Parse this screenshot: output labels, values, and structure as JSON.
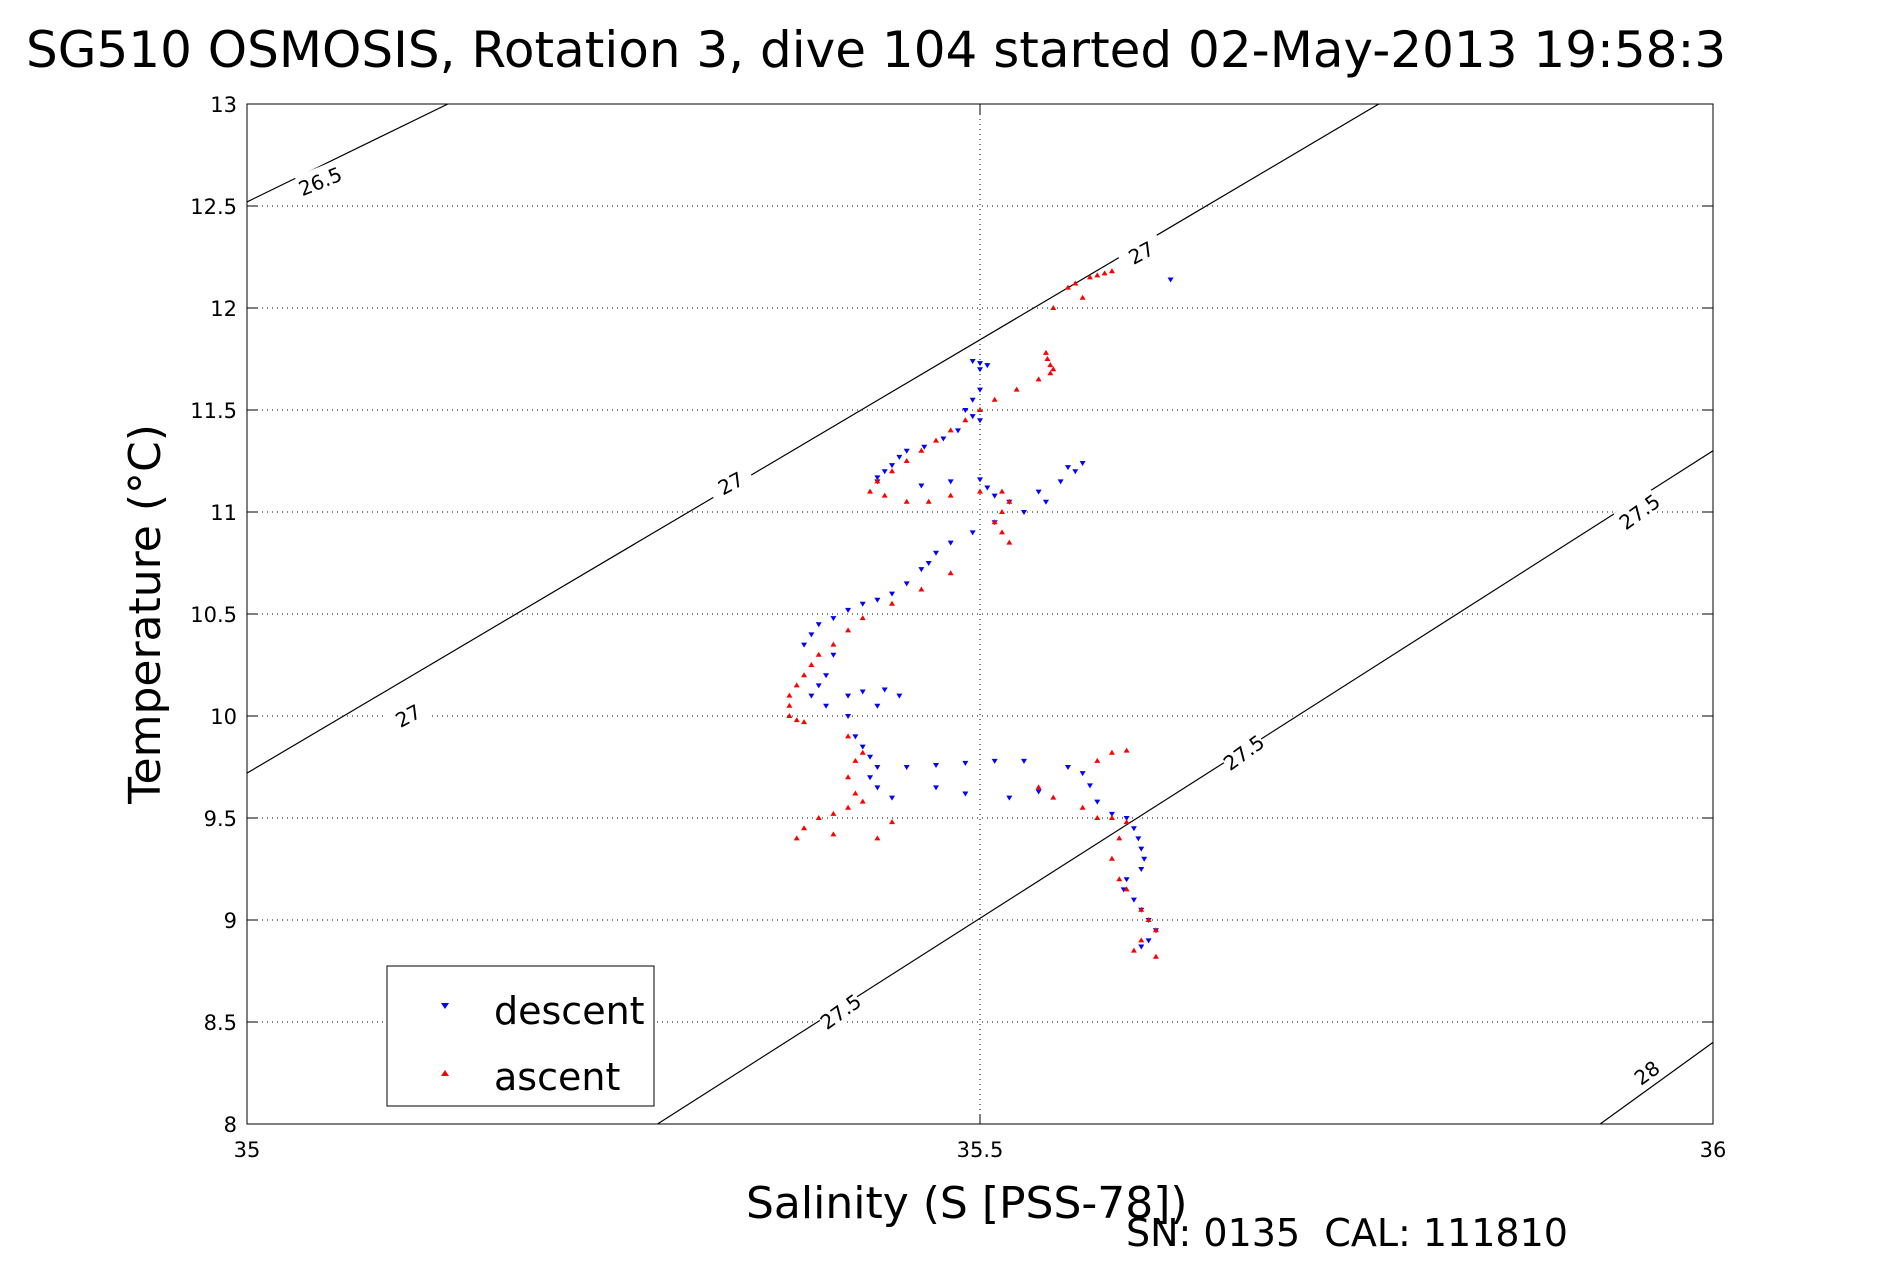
{
  "chart_data": {
    "type": "scatter",
    "title": "SG510 OSMOSIS, Rotation 3, dive 104 started 02-May-2013 19:58:3",
    "xlabel": "Salinity (S [PSS-78])",
    "ylabel": "Temperature (°C)",
    "footer": "SN: 0135  CAL: 111810",
    "xlim": [
      35,
      36
    ],
    "ylim": [
      8,
      13
    ],
    "x_ticks": [
      "35",
      "35.5",
      "36"
    ],
    "y_ticks": [
      "8",
      "8.5",
      "9",
      "9.5",
      "10",
      "10.5",
      "11",
      "11.5",
      "12",
      "12.5",
      "13"
    ],
    "grid": true,
    "legend": {
      "position": "bottom-left",
      "entries": [
        "descent",
        "ascent"
      ]
    },
    "colors": {
      "descent": "#0000ff",
      "ascent": "#ff0000",
      "contour": "#000000"
    },
    "density_contours": [
      {
        "label": "26.5",
        "points": [
          [
            35.0,
            12.52
          ],
          [
            35.137,
            13.0
          ]
        ]
      },
      {
        "label": "27",
        "points": [
          [
            35.0,
            9.72
          ],
          [
            35.772,
            13.0
          ]
        ]
      },
      {
        "label": "27.5",
        "points": [
          [
            35.28,
            8.0
          ],
          [
            36.0,
            11.3
          ]
        ]
      },
      {
        "label": "28",
        "points": [
          [
            35.923,
            8.0
          ],
          [
            36.0,
            8.4
          ]
        ]
      }
    ],
    "contour_labels": [
      {
        "text": "26.5",
        "x": 35.05,
        "y": 12.62,
        "angle": -22
      },
      {
        "text": "27",
        "x": 35.11,
        "y": 10.0,
        "angle": -28
      },
      {
        "text": "27",
        "x": 35.33,
        "y": 11.14,
        "angle": -28
      },
      {
        "text": "27",
        "x": 35.61,
        "y": 12.27,
        "angle": -28
      },
      {
        "text": "27.5",
        "x": 35.405,
        "y": 8.55,
        "angle": -36
      },
      {
        "text": "27.5",
        "x": 35.68,
        "y": 9.82,
        "angle": -36
      },
      {
        "text": "27.5",
        "x": 35.95,
        "y": 11.0,
        "angle": -36
      },
      {
        "text": "28",
        "x": 35.955,
        "y": 8.25,
        "angle": -36
      }
    ],
    "series": [
      {
        "name": "descent",
        "marker": "triangle-down",
        "points": [
          [
            35.63,
            12.14
          ],
          [
            35.495,
            11.74
          ],
          [
            35.5,
            11.73
          ],
          [
            35.505,
            11.72
          ],
          [
            35.5,
            11.7
          ],
          [
            35.5,
            11.6
          ],
          [
            35.495,
            11.55
          ],
          [
            35.49,
            11.5
          ],
          [
            35.495,
            11.47
          ],
          [
            35.5,
            11.45
          ],
          [
            35.485,
            11.4
          ],
          [
            35.475,
            11.36
          ],
          [
            35.462,
            11.32
          ],
          [
            35.45,
            11.3
          ],
          [
            35.445,
            11.27
          ],
          [
            35.44,
            11.23
          ],
          [
            35.435,
            11.2
          ],
          [
            35.43,
            11.17
          ],
          [
            35.43,
            11.15
          ],
          [
            35.46,
            11.13
          ],
          [
            35.48,
            11.15
          ],
          [
            35.5,
            11.16
          ],
          [
            35.505,
            11.12
          ],
          [
            35.51,
            11.08
          ],
          [
            35.52,
            11.05
          ],
          [
            35.54,
            11.1
          ],
          [
            35.555,
            11.15
          ],
          [
            35.565,
            11.2
          ],
          [
            35.57,
            11.24
          ],
          [
            35.56,
            11.22
          ],
          [
            35.545,
            11.05
          ],
          [
            35.53,
            11.0
          ],
          [
            35.51,
            10.95
          ],
          [
            35.495,
            10.9
          ],
          [
            35.48,
            10.85
          ],
          [
            35.47,
            10.8
          ],
          [
            35.465,
            10.75
          ],
          [
            35.46,
            10.72
          ],
          [
            35.45,
            10.65
          ],
          [
            35.44,
            10.6
          ],
          [
            35.43,
            10.57
          ],
          [
            35.42,
            10.55
          ],
          [
            35.41,
            10.52
          ],
          [
            35.4,
            10.48
          ],
          [
            35.39,
            10.45
          ],
          [
            35.385,
            10.4
          ],
          [
            35.38,
            10.35
          ],
          [
            35.4,
            10.3
          ],
          [
            35.395,
            10.2
          ],
          [
            35.39,
            10.15
          ],
          [
            35.385,
            10.1
          ],
          [
            35.395,
            10.05
          ],
          [
            35.41,
            10.1
          ],
          [
            35.42,
            10.12
          ],
          [
            35.435,
            10.13
          ],
          [
            35.445,
            10.1
          ],
          [
            35.43,
            10.05
          ],
          [
            35.41,
            10.0
          ],
          [
            35.415,
            9.9
          ],
          [
            35.42,
            9.85
          ],
          [
            35.425,
            9.8
          ],
          [
            35.43,
            9.75
          ],
          [
            35.425,
            9.7
          ],
          [
            35.43,
            9.65
          ],
          [
            35.44,
            9.6
          ],
          [
            35.45,
            9.75
          ],
          [
            35.47,
            9.76
          ],
          [
            35.49,
            9.77
          ],
          [
            35.51,
            9.78
          ],
          [
            35.53,
            9.78
          ],
          [
            35.47,
            9.65
          ],
          [
            35.49,
            9.62
          ],
          [
            35.52,
            9.6
          ],
          [
            35.54,
            9.63
          ],
          [
            35.56,
            9.75
          ],
          [
            35.57,
            9.72
          ],
          [
            35.575,
            9.66
          ],
          [
            35.58,
            9.58
          ],
          [
            35.59,
            9.52
          ],
          [
            35.6,
            9.5
          ],
          [
            35.605,
            9.45
          ],
          [
            35.608,
            9.4
          ],
          [
            35.61,
            9.35
          ],
          [
            35.612,
            9.3
          ],
          [
            35.61,
            9.25
          ],
          [
            35.6,
            9.2
          ],
          [
            35.598,
            9.15
          ],
          [
            35.605,
            9.1
          ],
          [
            35.61,
            9.05
          ],
          [
            35.615,
            9.0
          ],
          [
            35.62,
            8.95
          ],
          [
            35.615,
            8.9
          ],
          [
            35.61,
            8.87
          ]
        ]
      },
      {
        "name": "ascent",
        "marker": "triangle-up",
        "points": [
          [
            35.59,
            12.18
          ],
          [
            35.585,
            12.17
          ],
          [
            35.58,
            12.16
          ],
          [
            35.575,
            12.15
          ],
          [
            35.565,
            12.12
          ],
          [
            35.56,
            12.1
          ],
          [
            35.57,
            12.05
          ],
          [
            35.55,
            12.0
          ],
          [
            35.545,
            11.78
          ],
          [
            35.546,
            11.75
          ],
          [
            35.548,
            11.72
          ],
          [
            35.55,
            11.7
          ],
          [
            35.548,
            11.68
          ],
          [
            35.54,
            11.65
          ],
          [
            35.525,
            11.6
          ],
          [
            35.51,
            11.55
          ],
          [
            35.5,
            11.5
          ],
          [
            35.49,
            11.45
          ],
          [
            35.48,
            11.4
          ],
          [
            35.47,
            11.35
          ],
          [
            35.46,
            11.3
          ],
          [
            35.45,
            11.25
          ],
          [
            35.44,
            11.2
          ],
          [
            35.43,
            11.15
          ],
          [
            35.425,
            11.1
          ],
          [
            35.435,
            11.08
          ],
          [
            35.45,
            11.05
          ],
          [
            35.465,
            11.05
          ],
          [
            35.48,
            11.08
          ],
          [
            35.5,
            11.1
          ],
          [
            35.515,
            11.1
          ],
          [
            35.52,
            11.05
          ],
          [
            35.515,
            11.0
          ],
          [
            35.51,
            10.95
          ],
          [
            35.515,
            10.9
          ],
          [
            35.52,
            10.85
          ],
          [
            35.48,
            10.7
          ],
          [
            35.46,
            10.62
          ],
          [
            35.44,
            10.55
          ],
          [
            35.42,
            10.48
          ],
          [
            35.41,
            10.42
          ],
          [
            35.4,
            10.35
          ],
          [
            35.39,
            10.3
          ],
          [
            35.385,
            10.25
          ],
          [
            35.38,
            10.2
          ],
          [
            35.375,
            10.15
          ],
          [
            35.37,
            10.1
          ],
          [
            35.37,
            10.05
          ],
          [
            35.37,
            10.0
          ],
          [
            35.375,
            9.98
          ],
          [
            35.38,
            9.97
          ],
          [
            35.41,
            9.9
          ],
          [
            35.42,
            9.82
          ],
          [
            35.415,
            9.78
          ],
          [
            35.41,
            9.7
          ],
          [
            35.415,
            9.62
          ],
          [
            35.42,
            9.58
          ],
          [
            35.41,
            9.55
          ],
          [
            35.4,
            9.52
          ],
          [
            35.39,
            9.5
          ],
          [
            35.38,
            9.45
          ],
          [
            35.375,
            9.4
          ],
          [
            35.4,
            9.42
          ],
          [
            35.43,
            9.4
          ],
          [
            35.44,
            9.48
          ],
          [
            35.54,
            9.65
          ],
          [
            35.55,
            9.6
          ],
          [
            35.57,
            9.55
          ],
          [
            35.58,
            9.5
          ],
          [
            35.59,
            9.5
          ],
          [
            35.6,
            9.48
          ],
          [
            35.595,
            9.4
          ],
          [
            35.59,
            9.3
          ],
          [
            35.595,
            9.2
          ],
          [
            35.6,
            9.15
          ],
          [
            35.61,
            9.05
          ],
          [
            35.615,
            9.0
          ],
          [
            35.62,
            8.95
          ],
          [
            35.61,
            8.9
          ],
          [
            35.605,
            8.85
          ],
          [
            35.62,
            8.82
          ],
          [
            35.59,
            9.82
          ],
          [
            35.6,
            9.83
          ],
          [
            35.58,
            9.78
          ]
        ]
      }
    ]
  }
}
